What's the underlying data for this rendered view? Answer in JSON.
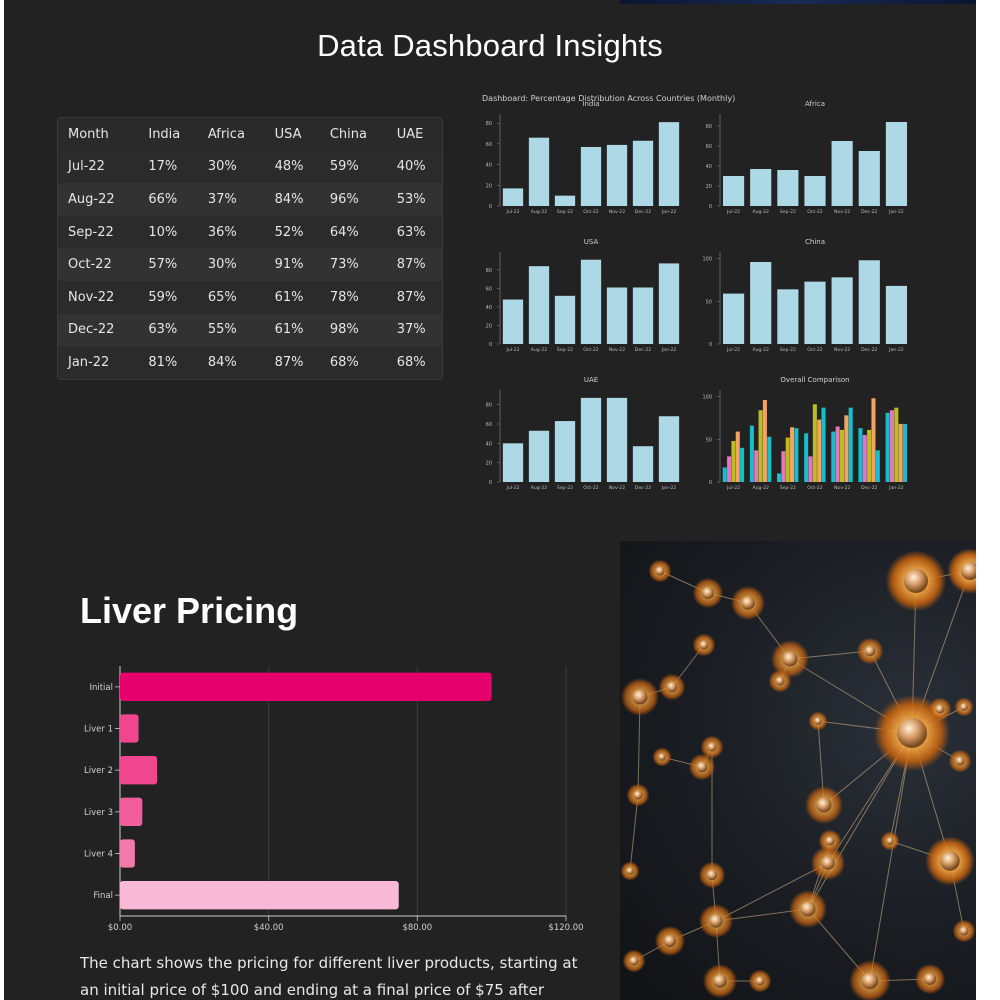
{
  "page": {
    "title": "Data Dashboard Insights"
  },
  "table": {
    "headers": [
      "Month",
      "India",
      "Africa",
      "USA",
      "China",
      "UAE"
    ],
    "rows": [
      [
        "Jul-22",
        "17%",
        "30%",
        "48%",
        "59%",
        "40%"
      ],
      [
        "Aug-22",
        "66%",
        "37%",
        "84%",
        "96%",
        "53%"
      ],
      [
        "Sep-22",
        "10%",
        "36%",
        "52%",
        "64%",
        "63%"
      ],
      [
        "Oct-22",
        "57%",
        "30%",
        "91%",
        "73%",
        "87%"
      ],
      [
        "Nov-22",
        "59%",
        "65%",
        "61%",
        "78%",
        "87%"
      ],
      [
        "Dec-22",
        "63%",
        "55%",
        "61%",
        "98%",
        "37%"
      ],
      [
        "Jan-22",
        "81%",
        "84%",
        "87%",
        "68%",
        "68%"
      ]
    ]
  },
  "dashboard": {
    "title": "Dashboard: Percentage Distribution Across Countries (Monthly)",
    "bar_color": "#add8e6",
    "comparison_colors": [
      "#17becf",
      "#e377c2",
      "#bcbd22",
      "#f4a460"
    ]
  },
  "chart_data": [
    {
      "type": "bar",
      "title": "India",
      "categories": [
        "Jul-22",
        "Aug-22",
        "Sep-22",
        "Oct-22",
        "Nov-22",
        "Dec-22",
        "Jan-22"
      ],
      "values": [
        17,
        66,
        10,
        57,
        59,
        63,
        81
      ],
      "yticks": [
        "0",
        "20",
        "40",
        "60",
        "80"
      ],
      "ylim": [
        0,
        85
      ]
    },
    {
      "type": "bar",
      "title": "Africa",
      "categories": [
        "Jul-22",
        "Aug-22",
        "Sep-22",
        "Oct-22",
        "Nov-22",
        "Dec-22",
        "Jan-22"
      ],
      "values": [
        30,
        37,
        36,
        30,
        65,
        55,
        84
      ],
      "yticks": [
        "0",
        "20",
        "40",
        "60",
        "80"
      ],
      "ylim": [
        0,
        88
      ]
    },
    {
      "type": "bar",
      "title": "USA",
      "categories": [
        "Jul-22",
        "Aug-22",
        "Sep-22",
        "Oct-22",
        "Nov-22",
        "Dec-22",
        "Jan-22"
      ],
      "values": [
        48,
        84,
        52,
        91,
        61,
        61,
        87
      ],
      "yticks": [
        "0",
        "20",
        "40",
        "60",
        "80"
      ],
      "ylim": [
        0,
        95
      ]
    },
    {
      "type": "bar",
      "title": "China",
      "categories": [
        "Jul-22",
        "Aug-22",
        "Sep-22",
        "Oct-22",
        "Nov-22",
        "Dec-22",
        "Jan-22"
      ],
      "values": [
        59,
        96,
        64,
        73,
        78,
        98,
        68
      ],
      "yticks": [
        "0",
        "50",
        "100"
      ],
      "ylim": [
        0,
        103
      ]
    },
    {
      "type": "bar",
      "title": "UAE",
      "categories": [
        "Jul-22",
        "Aug-22",
        "Sep-22",
        "Oct-22",
        "Nov-22",
        "Dec-22",
        "Jan-22"
      ],
      "values": [
        40,
        53,
        63,
        87,
        87,
        37,
        68
      ],
      "yticks": [
        "0",
        "20",
        "40",
        "60",
        "80"
      ],
      "ylim": [
        0,
        91
      ]
    },
    {
      "type": "bar",
      "title": "Overall Comparison",
      "categories": [
        "Jul-22",
        "Aug-22",
        "Sep-22",
        "Oct-22",
        "Nov-22",
        "Dec-22",
        "Jan-22"
      ],
      "series": [
        {
          "values": [
            17,
            66,
            10,
            57,
            59,
            63,
            81
          ]
        },
        {
          "values": [
            30,
            37,
            36,
            30,
            65,
            55,
            84
          ]
        },
        {
          "values": [
            48,
            84,
            52,
            91,
            61,
            61,
            87
          ]
        },
        {
          "values": [
            59,
            96,
            64,
            73,
            78,
            98,
            68
          ]
        },
        {
          "values": [
            40,
            53,
            63,
            87,
            87,
            37,
            68
          ]
        }
      ],
      "yticks": [
        "0",
        "50",
        "100"
      ],
      "ylim": [
        0,
        103
      ]
    },
    {
      "type": "bar",
      "orientation": "horizontal",
      "title": "Liver Pricing",
      "categories": [
        "Initial",
        "Liver 1",
        "Liver 2",
        "Liver 3",
        "Liver 4",
        "Final"
      ],
      "values": [
        100,
        5,
        10,
        6,
        4,
        75
      ],
      "colors": [
        "#e6006e",
        "#f0468e",
        "#f0468e",
        "#f25e9c",
        "#f27aab",
        "#f9b8d5"
      ],
      "xticks": [
        "$0.00",
        "$40.00",
        "$80.00",
        "$120.00"
      ],
      "xlim": [
        0,
        120
      ]
    }
  ],
  "liver": {
    "title": "Liver Pricing",
    "description": "The chart shows the pricing for different liver products, starting at an initial price of $100 and ending at a final price of $75 after"
  }
}
